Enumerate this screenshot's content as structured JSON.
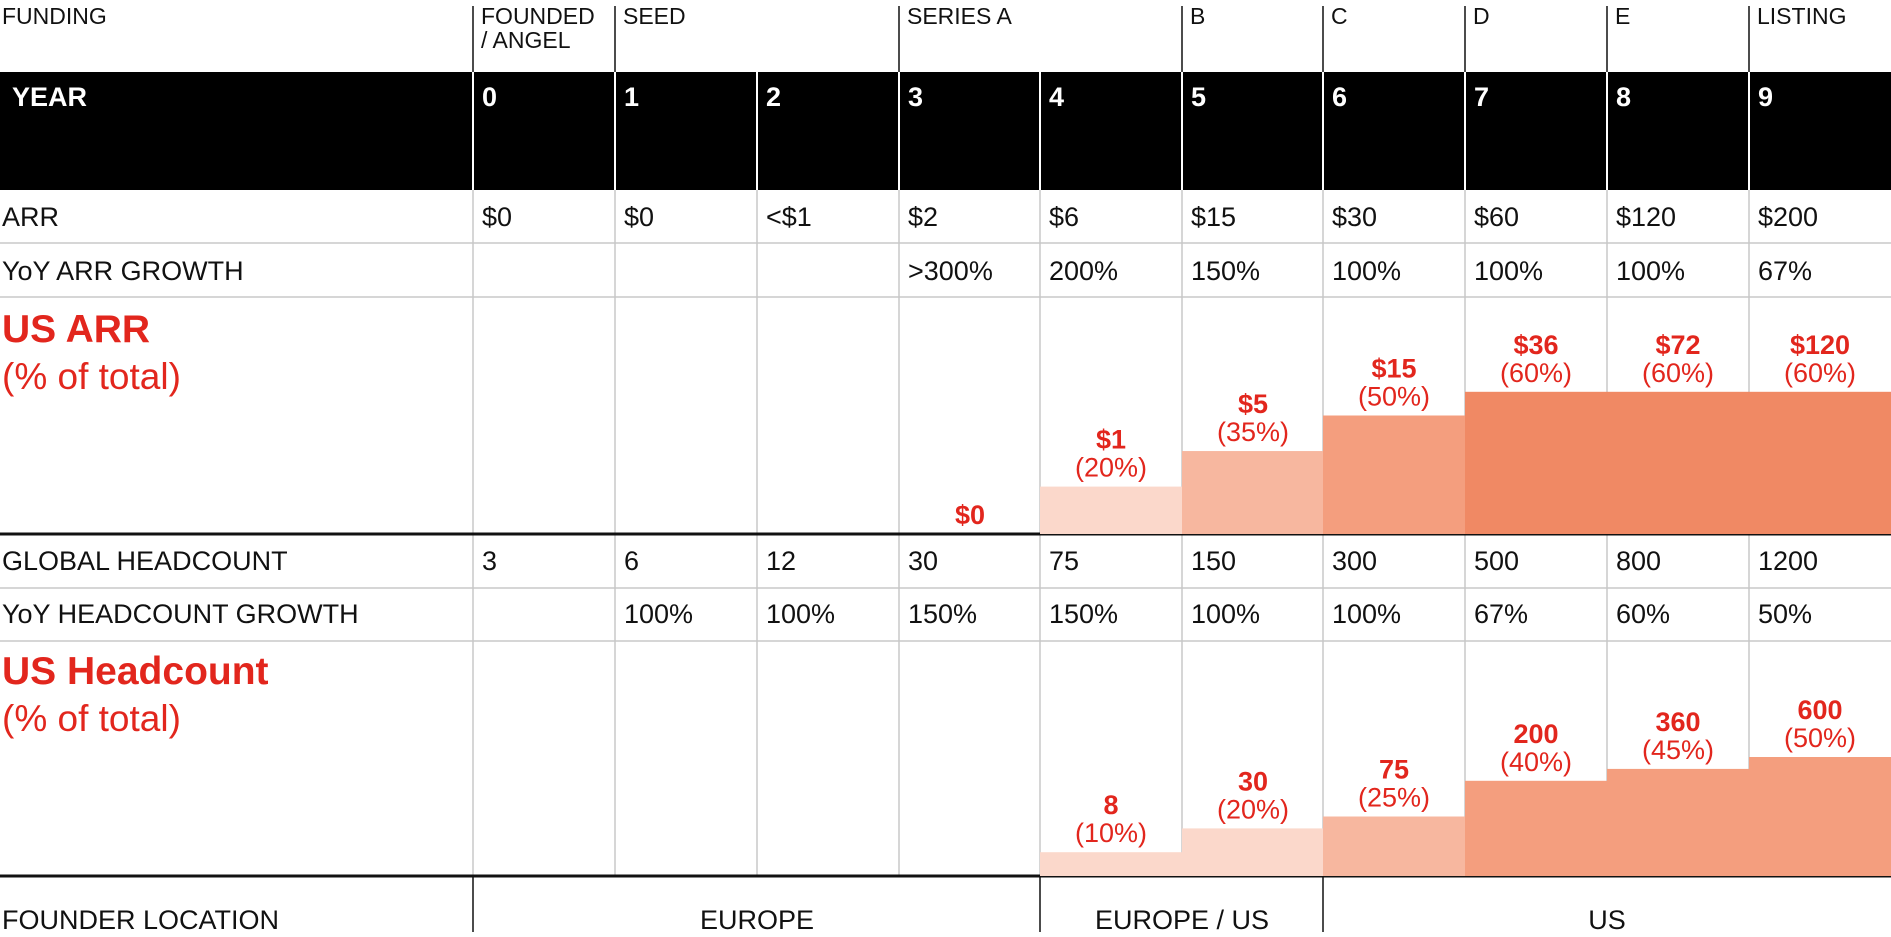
{
  "funding": {
    "label": "FUNDING",
    "stages": [
      {
        "id": "founded",
        "line1": "FOUNDED",
        "line2": "/ ANGEL"
      },
      {
        "id": "seed",
        "line1": "SEED",
        "line2": ""
      },
      {
        "id": "series-a",
        "line1": "SERIES A",
        "line2": ""
      },
      {
        "id": "b",
        "line1": "B",
        "line2": ""
      },
      {
        "id": "c",
        "line1": "C",
        "line2": ""
      },
      {
        "id": "d",
        "line1": "D",
        "line2": ""
      },
      {
        "id": "e",
        "line1": "E",
        "line2": ""
      },
      {
        "id": "listing",
        "line1": "LISTING",
        "line2": ""
      }
    ]
  },
  "year": {
    "label": "YEAR",
    "values": [
      "0",
      "1",
      "2",
      "3",
      "4",
      "5",
      "6",
      "7",
      "8",
      "9"
    ]
  },
  "arr": {
    "label": "ARR",
    "values": [
      "$0",
      "$0",
      "<$1",
      "$2",
      "$6",
      "$15",
      "$30",
      "$60",
      "$120",
      "$200"
    ]
  },
  "arr_growth": {
    "label": "YoY ARR GROWTH",
    "values": [
      "",
      "",
      "",
      ">300%",
      "200%",
      "150%",
      "100%",
      "100%",
      "100%",
      "67%"
    ]
  },
  "us_arr": {
    "title": "US ARR",
    "subtitle": "(% of total)",
    "values": [
      "",
      "",
      "",
      "$0",
      "$1",
      "$5",
      "$15",
      "$36",
      "$72",
      "$120"
    ],
    "pct_labels": [
      "",
      "",
      "",
      "",
      "(20%)",
      "(35%)",
      "(50%)",
      "(60%)",
      "(60%)",
      "(60%)"
    ],
    "pct": [
      null,
      null,
      null,
      0,
      20,
      35,
      50,
      60,
      60,
      60
    ]
  },
  "headcount": {
    "label": "GLOBAL HEADCOUNT",
    "values": [
      "3",
      "6",
      "12",
      "30",
      "75",
      "150",
      "300",
      "500",
      "800",
      "1200"
    ]
  },
  "headcount_growth": {
    "label": "YoY HEADCOUNT GROWTH",
    "values": [
      "",
      "100%",
      "100%",
      "150%",
      "150%",
      "100%",
      "100%",
      "67%",
      "60%",
      "50%"
    ]
  },
  "us_headcount": {
    "title": "US Headcount",
    "subtitle": "(% of total)",
    "values": [
      "",
      "",
      "",
      "",
      "8",
      "30",
      "75",
      "200",
      "360",
      "600"
    ],
    "pct_labels": [
      "",
      "",
      "",
      "",
      "(10%)",
      "(20%)",
      "(25%)",
      "(40%)",
      "(45%)",
      "(50%)"
    ],
    "pct": [
      null,
      null,
      null,
      null,
      10,
      20,
      25,
      40,
      45,
      50
    ]
  },
  "founder_location": {
    "label": "FOUNDER LOCATION",
    "groups": [
      {
        "id": "europe",
        "label": "EUROPE"
      },
      {
        "id": "europe-us",
        "label": "EUROPE / US"
      },
      {
        "id": "us",
        "label": "US"
      }
    ]
  },
  "colors": {
    "accent_red": "#e2261d",
    "header_bg": "#000000",
    "bar_shades": [
      "#fbd8cb",
      "#f7b79f",
      "#f49e7e",
      "#f08964"
    ]
  }
}
